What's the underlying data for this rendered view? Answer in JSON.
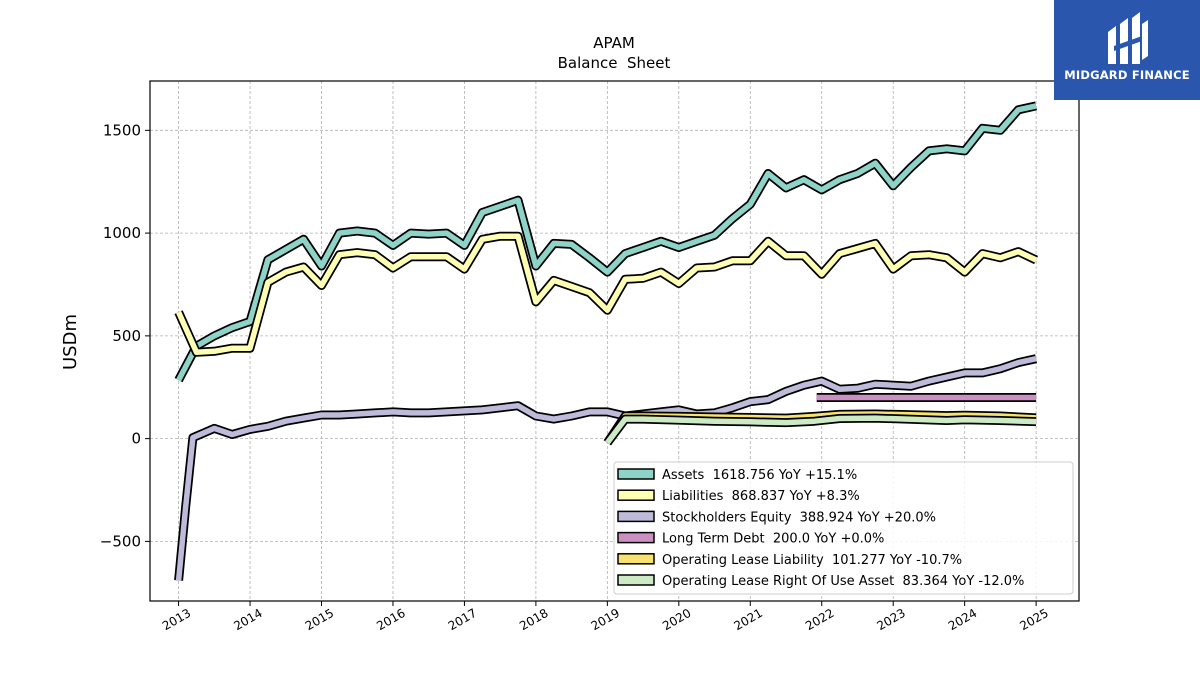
{
  "logo": {
    "text": "MIDGARD FINANCE",
    "bg_color": "#2a57ad"
  },
  "chart_data": {
    "type": "line",
    "title": "APAM",
    "subtitle": "Balance  Sheet",
    "ylabel": "USDm",
    "xlabel": "",
    "xlim": [
      2012.6,
      2025.6
    ],
    "ylim": [
      -790,
      1740
    ],
    "yticks": [
      -500,
      0,
      500,
      1000,
      1500
    ],
    "ytick_labels": [
      "−500",
      "0",
      "500",
      "1000",
      "1500"
    ],
    "xticks": [
      "2013",
      "2014",
      "2015",
      "2016",
      "2017",
      "2018",
      "2019",
      "2020",
      "2021",
      "2022",
      "2023",
      "2024",
      "2025"
    ],
    "grid": true,
    "legend_position": "lower-right",
    "series": [
      {
        "name": "Assets",
        "legend": "Assets  1618.756 YoY +15.1%",
        "color": "#8dd3c7",
        "x": [
          2013.0,
          2013.25,
          2013.5,
          2013.75,
          2014.0,
          2014.25,
          2014.5,
          2014.75,
          2015.0,
          2015.25,
          2015.5,
          2015.75,
          2016.0,
          2016.25,
          2016.5,
          2016.75,
          2017.0,
          2017.25,
          2017.5,
          2017.75,
          2018.0,
          2018.25,
          2018.5,
          2018.75,
          2019.0,
          2019.25,
          2019.5,
          2019.75,
          2020.0,
          2020.25,
          2020.5,
          2020.75,
          2021.0,
          2021.25,
          2021.5,
          2021.75,
          2022.0,
          2022.25,
          2022.5,
          2022.75,
          2023.0,
          2023.25,
          2023.5,
          2023.75,
          2024.0,
          2024.25,
          2024.5,
          2024.75,
          2025.0
        ],
        "y": [
          285,
          450,
          500,
          540,
          570,
          870,
          920,
          970,
          840,
          1000,
          1010,
          1000,
          940,
          1000,
          995,
          1000,
          940,
          1100,
          1130,
          1160,
          840,
          950,
          945,
          880,
          810,
          900,
          930,
          960,
          930,
          960,
          990,
          1070,
          1140,
          1290,
          1220,
          1260,
          1210,
          1260,
          1290,
          1340,
          1230,
          1320,
          1400,
          1410,
          1400,
          1510,
          1500,
          1600,
          1619
        ]
      },
      {
        "name": "Liabilities",
        "legend": "Liabilities  868.837 YoY +8.3%",
        "color": "#ffffb3",
        "x": [
          2013.0,
          2013.25,
          2013.5,
          2013.75,
          2014.0,
          2014.25,
          2014.5,
          2014.75,
          2015.0,
          2015.25,
          2015.5,
          2015.75,
          2016.0,
          2016.25,
          2016.5,
          2016.75,
          2017.0,
          2017.25,
          2017.5,
          2017.75,
          2018.0,
          2018.25,
          2018.5,
          2018.75,
          2019.0,
          2019.25,
          2019.5,
          2019.75,
          2020.0,
          2020.25,
          2020.5,
          2020.75,
          2021.0,
          2021.25,
          2021.5,
          2021.75,
          2022.0,
          2022.25,
          2022.5,
          2022.75,
          2023.0,
          2023.25,
          2023.5,
          2023.75,
          2024.0,
          2024.25,
          2024.5,
          2024.75,
          2025.0
        ],
        "y": [
          615,
          420,
          425,
          440,
          440,
          760,
          810,
          835,
          745,
          895,
          905,
          895,
          830,
          885,
          885,
          885,
          825,
          970,
          985,
          985,
          665,
          770,
          740,
          710,
          625,
          775,
          780,
          810,
          755,
          830,
          835,
          865,
          865,
          960,
          890,
          890,
          800,
          900,
          925,
          950,
          825,
          890,
          895,
          880,
          810,
          900,
          880,
          910,
          869
        ]
      },
      {
        "name": "Stockholders Equity",
        "legend": "Stockholders Equity  388.924 YoY +20.0%",
        "color": "#bebada",
        "x": [
          2013.0,
          2013.1,
          2013.2,
          2013.5,
          2013.75,
          2014.0,
          2014.25,
          2014.5,
          2014.75,
          2015.0,
          2015.25,
          2015.5,
          2015.75,
          2016.0,
          2016.25,
          2016.5,
          2016.75,
          2017.0,
          2017.25,
          2017.5,
          2017.75,
          2018.0,
          2018.25,
          2018.5,
          2018.75,
          2019.0,
          2019.25,
          2019.5,
          2019.75,
          2020.0,
          2020.25,
          2020.5,
          2020.75,
          2021.0,
          2021.25,
          2021.5,
          2021.75,
          2022.0,
          2022.25,
          2022.5,
          2022.75,
          2023.0,
          2023.25,
          2023.5,
          2023.75,
          2024.0,
          2024.25,
          2024.5,
          2024.75,
          2025.0
        ],
        "y": [
          -690,
          -330,
          5,
          50,
          20,
          45,
          60,
          85,
          100,
          115,
          115,
          120,
          125,
          130,
          125,
          125,
          130,
          135,
          140,
          150,
          160,
          110,
          95,
          110,
          130,
          130,
          110,
          120,
          130,
          140,
          120,
          125,
          150,
          180,
          190,
          230,
          260,
          280,
          240,
          245,
          265,
          260,
          255,
          280,
          300,
          320,
          320,
          340,
          370,
          389
        ]
      },
      {
        "name": "Long Term Debt",
        "legend": "Long Term Debt  200.0 YoY +0.0%",
        "color": "#cc8fc1",
        "x": [
          2021.93,
          2025.0
        ],
        "y": [
          200,
          200
        ]
      },
      {
        "name": "Operating Lease Liability",
        "legend": "Operating Lease Liability  101.277 YoY -10.7%",
        "color": "#f7e16f",
        "x": [
          2019.0,
          2019.25,
          2019.5,
          2020.0,
          2020.5,
          2021.0,
          2021.5,
          2021.9,
          2022.25,
          2022.75,
          2023.25,
          2023.75,
          2024.0,
          2024.5,
          2025.0
        ],
        "y": [
          -20,
          110,
          110,
          108,
          105,
          103,
          100,
          108,
          118,
          120,
          116,
          112,
          114,
          110,
          101
        ]
      },
      {
        "name": "Operating Lease Right Of Use Asset",
        "legend": "Operating Lease Right Of Use Asset  83.364 YoY -12.0%",
        "color": "#ccebc5",
        "x": [
          2019.0,
          2019.25,
          2019.5,
          2020.0,
          2020.5,
          2021.0,
          2021.5,
          2021.9,
          2022.25,
          2022.75,
          2023.25,
          2023.75,
          2024.0,
          2024.5,
          2025.0
        ],
        "y": [
          -20,
          95,
          95,
          90,
          85,
          82,
          78,
          85,
          98,
          100,
          94,
          88,
          92,
          88,
          83
        ]
      }
    ]
  }
}
